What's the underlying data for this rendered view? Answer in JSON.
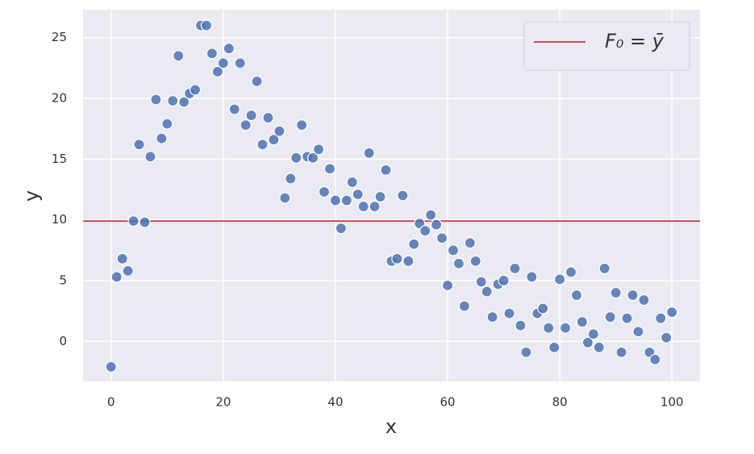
{
  "chart_data": {
    "type": "scatter",
    "x_label": "x",
    "y_label": "y",
    "x": [
      0,
      1,
      2,
      3,
      4,
      5,
      6,
      7,
      8,
      9,
      10,
      11,
      12,
      13,
      14,
      15,
      16,
      17,
      18,
      19,
      20,
      21,
      22,
      23,
      24,
      25,
      26,
      27,
      28,
      29,
      30,
      31,
      32,
      33,
      34,
      35,
      36,
      37,
      38,
      39,
      40,
      41,
      42,
      43,
      44,
      45,
      46,
      47,
      48,
      49,
      50,
      51,
      52,
      53,
      54,
      55,
      56,
      57,
      58,
      59,
      60,
      61,
      62,
      63,
      64,
      65,
      66,
      67,
      68,
      69,
      70,
      71,
      72,
      73,
      74,
      75,
      76,
      77,
      78,
      79,
      80,
      81,
      82,
      83,
      84,
      85,
      86,
      87,
      88,
      89,
      90,
      91,
      92,
      93,
      94,
      95,
      96,
      97,
      98,
      99,
      100
    ],
    "values": [
      -2.1,
      5.3,
      6.8,
      5.8,
      9.9,
      16.2,
      9.8,
      15.2,
      19.9,
      16.7,
      17.9,
      19.8,
      23.5,
      19.7,
      20.4,
      20.7,
      26.0,
      26.0,
      23.7,
      22.2,
      22.9,
      24.1,
      19.1,
      22.9,
      17.8,
      18.6,
      21.4,
      16.2,
      18.4,
      16.6,
      17.3,
      11.8,
      13.4,
      15.1,
      17.8,
      15.2,
      15.1,
      15.8,
      12.3,
      14.2,
      11.6,
      9.3,
      11.6,
      13.1,
      12.1,
      11.1,
      15.5,
      11.1,
      11.9,
      14.1,
      6.6,
      6.8,
      12.0,
      6.6,
      8.0,
      9.7,
      9.1,
      10.4,
      9.6,
      8.5,
      4.6,
      7.5,
      6.4,
      2.9,
      8.1,
      6.6,
      4.9,
      4.1,
      2.0,
      4.7,
      5.0,
      2.3,
      6.0,
      1.3,
      -0.9,
      5.3,
      2.3,
      2.7,
      1.1,
      -0.5,
      5.1,
      1.1,
      5.7,
      3.8,
      1.6,
      -0.1,
      0.6,
      -0.5,
      6.0,
      2.0,
      4.0,
      -0.9,
      1.9,
      3.8,
      0.8,
      3.4,
      -0.9,
      -1.5,
      1.9,
      0.3,
      2.4
    ],
    "color": "#4c72b0",
    "lines": [
      {
        "name": "F₀ = ȳ",
        "y": 9.9,
        "color": "#c44e52"
      }
    ],
    "xlim": [
      -5,
      105
    ],
    "ylim": [
      -3.3,
      27.3
    ],
    "xticks": [
      0,
      20,
      40,
      60,
      80,
      100
    ],
    "yticks": [
      0,
      5,
      10,
      15,
      20,
      25
    ],
    "grid": true,
    "legend": "upper right"
  }
}
